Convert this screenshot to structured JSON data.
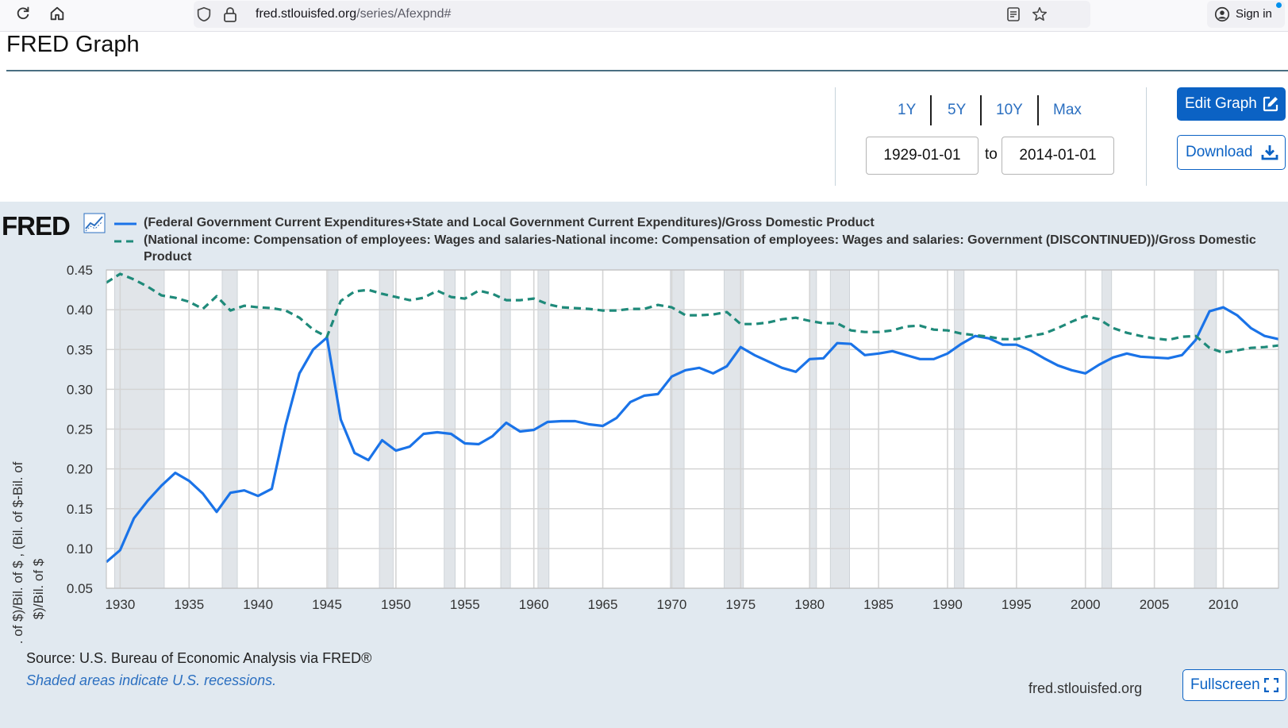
{
  "browser": {
    "url_host": "fred.stlouisfed.org",
    "url_path": "/series/Afexpnd#",
    "signin_label": "Sign in"
  },
  "page": {
    "title": "FRED Graph"
  },
  "range": {
    "options": [
      "1Y",
      "5Y",
      "10Y",
      "Max"
    ],
    "start_date": "1929-01-01",
    "end_date": "2014-01-01",
    "to_label": "to"
  },
  "buttons": {
    "edit_graph": "Edit Graph",
    "download": "Download",
    "fullscreen": "Fullscreen"
  },
  "chart": {
    "logo": "FRED",
    "legend_1": "(Federal Government Current Expenditures+State and Local Government Current Expenditures)/Gross Domestic Product",
    "legend_2a": "(National income: Compensation of employees: Wages and salaries-National income: Compensation of employees: Wages and salaries: Government (DISCONTINUED))/Gross Domestic",
    "legend_2b": "Product",
    "ylabel_line1": "(Bil. of $+Bil. of $)/Bil. of $ , (Bil. of $-Bil. of",
    "ylabel_line2": "$)/Bil. of $",
    "source": "Source: U.S. Bureau of Economic Analysis via FRED®",
    "shaded_note": "Shaded areas indicate U.S. recessions.",
    "site": "fred.stlouisfed.org",
    "colors": {
      "series1": "#1a73e8",
      "series2": "#1f8a7a",
      "recession": "#e1e5e9",
      "grid": "#d4d4d4"
    }
  },
  "chart_data": {
    "type": "line",
    "title": "",
    "xlabel": "",
    "ylabel": "(Bil. of $+Bil. of $)/Bil. of $ , (Bil. of $-Bil. of $)/Bil. of $",
    "xlim": [
      1929,
      2014
    ],
    "ylim": [
      0.05,
      0.45
    ],
    "x_ticks": [
      1930,
      1935,
      1940,
      1945,
      1950,
      1955,
      1960,
      1965,
      1970,
      1975,
      1980,
      1985,
      1990,
      1995,
      2000,
      2005,
      2010
    ],
    "y_ticks": [
      0.05,
      0.1,
      0.15,
      0.2,
      0.25,
      0.3,
      0.35,
      0.4,
      0.45
    ],
    "y_tick_labels": [
      "0.05",
      "0.10",
      "0.15",
      "0.20",
      "0.25",
      "0.30",
      "0.35",
      "0.40",
      "0.45"
    ],
    "recessions": [
      [
        1929.6,
        1933.2
      ],
      [
        1937.4,
        1938.5
      ],
      [
        1945.1,
        1945.8
      ],
      [
        1948.8,
        1949.8
      ],
      [
        1953.5,
        1954.3
      ],
      [
        1957.6,
        1958.3
      ],
      [
        1960.3,
        1961.1
      ],
      [
        1969.9,
        1970.9
      ],
      [
        1973.8,
        1975.2
      ],
      [
        1980.0,
        1980.5
      ],
      [
        1981.5,
        1982.9
      ],
      [
        1990.5,
        1991.2
      ],
      [
        2001.2,
        2001.9
      ],
      [
        2007.9,
        2009.5
      ]
    ],
    "series": [
      {
        "name": "(Federal Government Current Expenditures+State and Local Government Current Expenditures)/Gross Domestic Product",
        "style": "solid",
        "x": [
          1929,
          1930,
          1931,
          1932,
          1933,
          1934,
          1935,
          1936,
          1937,
          1938,
          1939,
          1940,
          1941,
          1942,
          1943,
          1944,
          1945,
          1946,
          1947,
          1948,
          1949,
          1950,
          1951,
          1952,
          1953,
          1954,
          1955,
          1956,
          1957,
          1958,
          1959,
          1960,
          1961,
          1962,
          1963,
          1964,
          1965,
          1966,
          1967,
          1968,
          1969,
          1970,
          1971,
          1972,
          1973,
          1974,
          1975,
          1976,
          1977,
          1978,
          1979,
          1980,
          1981,
          1982,
          1983,
          1984,
          1985,
          1986,
          1987,
          1988,
          1989,
          1990,
          1991,
          1992,
          1993,
          1994,
          1995,
          1996,
          1997,
          1998,
          1999,
          2000,
          2001,
          2002,
          2003,
          2004,
          2005,
          2006,
          2007,
          2008,
          2009,
          2010,
          2011,
          2012,
          2013,
          2014
        ],
        "values": [
          0.083,
          0.098,
          0.138,
          0.16,
          0.179,
          0.195,
          0.185,
          0.169,
          0.146,
          0.17,
          0.173,
          0.166,
          0.175,
          0.255,
          0.32,
          0.35,
          0.365,
          0.262,
          0.22,
          0.211,
          0.236,
          0.223,
          0.228,
          0.244,
          0.246,
          0.244,
          0.232,
          0.231,
          0.241,
          0.258,
          0.247,
          0.249,
          0.259,
          0.26,
          0.26,
          0.256,
          0.254,
          0.264,
          0.284,
          0.292,
          0.294,
          0.316,
          0.324,
          0.327,
          0.32,
          0.329,
          0.353,
          0.343,
          0.335,
          0.327,
          0.322,
          0.338,
          0.339,
          0.358,
          0.357,
          0.343,
          0.345,
          0.348,
          0.343,
          0.338,
          0.338,
          0.345,
          0.357,
          0.367,
          0.364,
          0.356,
          0.356,
          0.349,
          0.339,
          0.33,
          0.324,
          0.32,
          0.331,
          0.34,
          0.345,
          0.341,
          0.34,
          0.339,
          0.343,
          0.362,
          0.398,
          0.403,
          0.393,
          0.377,
          0.367,
          0.363
        ]
      },
      {
        "name": "(National income: Compensation of employees: Wages and salaries-National income: Compensation of employees: Wages and salaries: Government (DISCONTINUED))/Gross Domestic Product",
        "style": "dashed",
        "x": [
          1929,
          1930,
          1931,
          1932,
          1933,
          1934,
          1935,
          1936,
          1937,
          1938,
          1939,
          1940,
          1941,
          1942,
          1943,
          1944,
          1945,
          1946,
          1947,
          1948,
          1949,
          1950,
          1951,
          1952,
          1953,
          1954,
          1955,
          1956,
          1957,
          1958,
          1959,
          1960,
          1961,
          1962,
          1963,
          1964,
          1965,
          1966,
          1967,
          1968,
          1969,
          1970,
          1971,
          1972,
          1973,
          1974,
          1975,
          1976,
          1977,
          1978,
          1979,
          1980,
          1981,
          1982,
          1983,
          1984,
          1985,
          1986,
          1987,
          1988,
          1989,
          1990,
          1991,
          1992,
          1993,
          1994,
          1995,
          1996,
          1997,
          1998,
          1999,
          2000,
          2001,
          2002,
          2003,
          2004,
          2005,
          2006,
          2007,
          2008,
          2009,
          2010,
          2011,
          2012,
          2013,
          2014
        ],
        "values": [
          0.434,
          0.445,
          0.438,
          0.429,
          0.418,
          0.415,
          0.41,
          0.401,
          0.417,
          0.399,
          0.405,
          0.403,
          0.402,
          0.399,
          0.39,
          0.375,
          0.366,
          0.411,
          0.423,
          0.425,
          0.42,
          0.416,
          0.412,
          0.415,
          0.424,
          0.416,
          0.414,
          0.424,
          0.42,
          0.412,
          0.412,
          0.414,
          0.407,
          0.403,
          0.402,
          0.401,
          0.399,
          0.399,
          0.401,
          0.401,
          0.406,
          0.403,
          0.393,
          0.393,
          0.394,
          0.397,
          0.382,
          0.382,
          0.384,
          0.388,
          0.39,
          0.386,
          0.383,
          0.383,
          0.374,
          0.372,
          0.372,
          0.374,
          0.379,
          0.38,
          0.375,
          0.374,
          0.37,
          0.368,
          0.366,
          0.363,
          0.363,
          0.367,
          0.37,
          0.377,
          0.385,
          0.392,
          0.388,
          0.377,
          0.371,
          0.367,
          0.364,
          0.362,
          0.366,
          0.367,
          0.352,
          0.346,
          0.349,
          0.352,
          0.353,
          0.355
        ]
      }
    ]
  }
}
